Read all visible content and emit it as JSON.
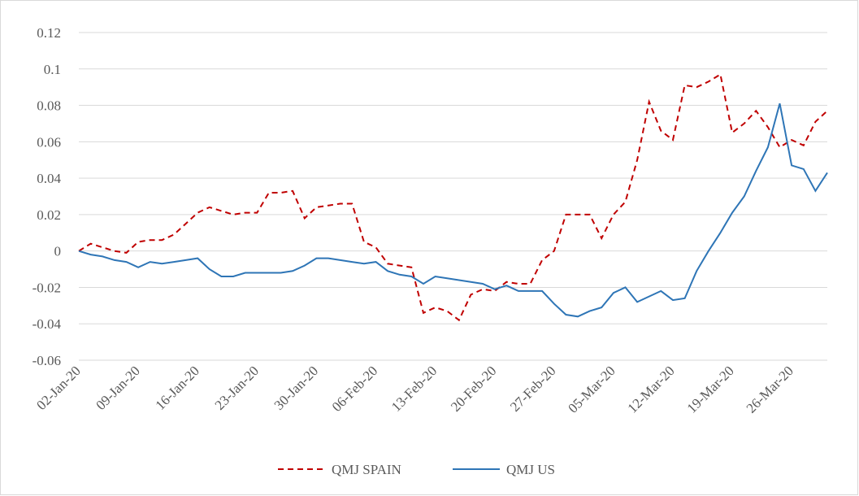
{
  "chart_data": {
    "type": "line",
    "categories": [
      "02-Jan-20",
      null,
      null,
      null,
      null,
      "09-Jan-20",
      null,
      null,
      null,
      null,
      "16-Jan-20",
      null,
      null,
      null,
      null,
      "23-Jan-20",
      null,
      null,
      null,
      null,
      "30-Jan-20",
      null,
      null,
      null,
      null,
      "06-Feb-20",
      null,
      null,
      null,
      null,
      "13-Feb-20",
      null,
      null,
      null,
      null,
      "20-Feb-20",
      null,
      null,
      null,
      null,
      "27-Feb-20",
      null,
      null,
      null,
      null,
      "05-Mar-20",
      null,
      null,
      null,
      null,
      "12-Mar-20",
      null,
      null,
      null,
      null,
      "19-Mar-20",
      null,
      null,
      null,
      null,
      "26-Mar-20",
      null,
      null,
      null
    ],
    "series": [
      {
        "name": "QMJ SPAIN",
        "color": "#c00000",
        "dash": true,
        "values": [
          0,
          0.004,
          0.002,
          0,
          -0.001,
          0.005,
          0.006,
          0.006,
          0.009,
          0.015,
          0.021,
          0.024,
          0.022,
          0.02,
          0.021,
          0.021,
          0.032,
          0.032,
          0.033,
          0.018,
          0.024,
          0.025,
          0.026,
          0.026,
          0.005,
          0.002,
          -0.007,
          -0.008,
          -0.009,
          -0.034,
          -0.031,
          -0.033,
          -0.038,
          -0.024,
          -0.021,
          -0.022,
          -0.017,
          -0.018,
          -0.018,
          -0.005,
          0,
          0.02,
          0.02,
          0.02,
          0.007,
          0.02,
          0.027,
          0.05,
          0.082,
          0.066,
          0.061,
          0.091,
          0.09,
          0.093,
          0.097,
          0.065,
          0.07,
          0.077,
          0.068,
          0.057,
          0.061,
          0.058,
          0.071,
          0.077
        ]
      },
      {
        "name": "QMJ US",
        "color": "#2e75b6",
        "dash": false,
        "values": [
          0,
          -0.002,
          -0.003,
          -0.005,
          -0.006,
          -0.009,
          -0.006,
          -0.007,
          -0.006,
          -0.005,
          -0.004,
          -0.01,
          -0.014,
          -0.014,
          -0.012,
          -0.012,
          -0.012,
          -0.012,
          -0.011,
          -0.008,
          -0.004,
          -0.004,
          -0.005,
          -0.006,
          -0.007,
          -0.006,
          -0.011,
          -0.013,
          -0.014,
          -0.018,
          -0.014,
          -0.015,
          -0.016,
          -0.017,
          -0.018,
          -0.021,
          -0.019,
          -0.022,
          -0.022,
          -0.022,
          -0.029,
          -0.035,
          -0.036,
          -0.033,
          -0.031,
          -0.023,
          -0.02,
          -0.028,
          -0.025,
          -0.022,
          -0.027,
          -0.026,
          -0.011,
          0,
          0.01,
          0.021,
          0.03,
          0.044,
          0.057,
          0.081,
          0.047,
          0.045,
          0.033,
          0.043
        ]
      }
    ],
    "ylim": [
      -0.06,
      0.12
    ],
    "yticks": [
      -0.06,
      -0.04,
      -0.02,
      0,
      0.02,
      0.04,
      0.06,
      0.08,
      0.1,
      0.12
    ],
    "grid": true,
    "legend": "bottom"
  }
}
